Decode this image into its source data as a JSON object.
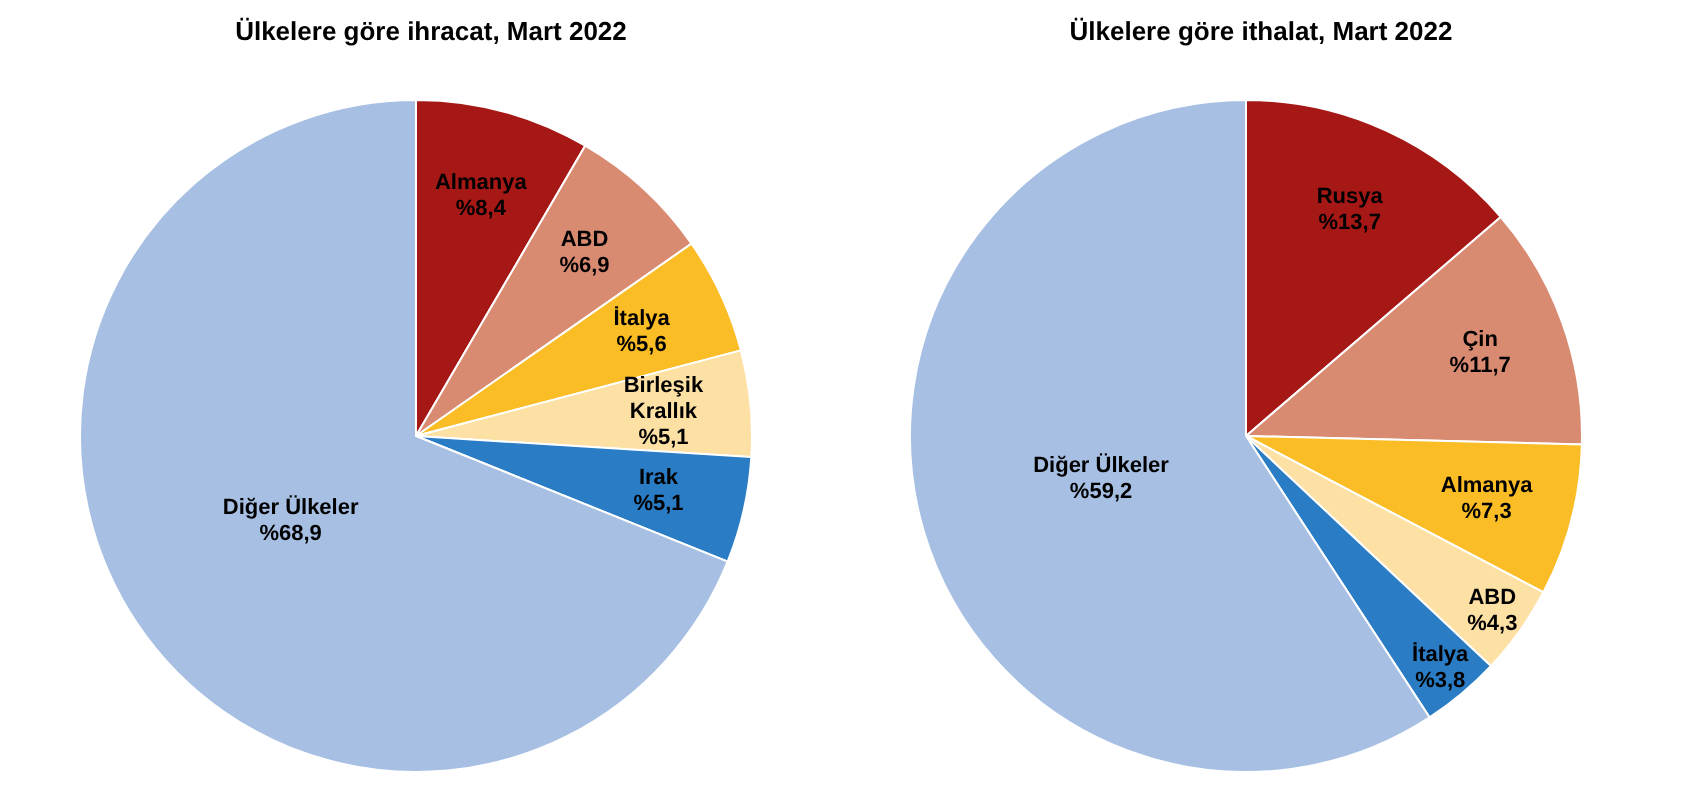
{
  "chart_data": [
    {
      "type": "pie",
      "title": "Ülkelere göre ihracat, Mart 2022",
      "categories": [
        "Almanya",
        "ABD",
        "İtalya",
        "Birleşik Krallık",
        "Irak",
        "Diğer Ülkeler"
      ],
      "values": [
        8.4,
        6.9,
        5.6,
        5.1,
        5.1,
        68.9
      ],
      "value_labels": [
        "%8,4",
        "%6,9",
        "%5,6",
        "%5,1",
        "%5,1",
        "%68,9"
      ],
      "colors": [
        "#a51816",
        "#d98b72",
        "#fbbd25",
        "#fde0a4",
        "#2a7cc4",
        "#a6bfe3"
      ],
      "legend": false
    },
    {
      "type": "pie",
      "title": "Ülkelere göre ithalat, Mart 2022",
      "categories": [
        "Rusya",
        "Çin",
        "Almanya",
        "ABD",
        "İtalya",
        "Diğer Ülkeler"
      ],
      "values": [
        13.7,
        11.7,
        7.3,
        4.3,
        3.8,
        59.2
      ],
      "value_labels": [
        "%13,7",
        "%11,7",
        "%7,3",
        "%4,3",
        "%3,8",
        "%59,2"
      ],
      "colors": [
        "#a51816",
        "#d98b72",
        "#fbbd25",
        "#fde0a4",
        "#2a7cc4",
        "#a6bfe3"
      ],
      "legend": false
    }
  ]
}
